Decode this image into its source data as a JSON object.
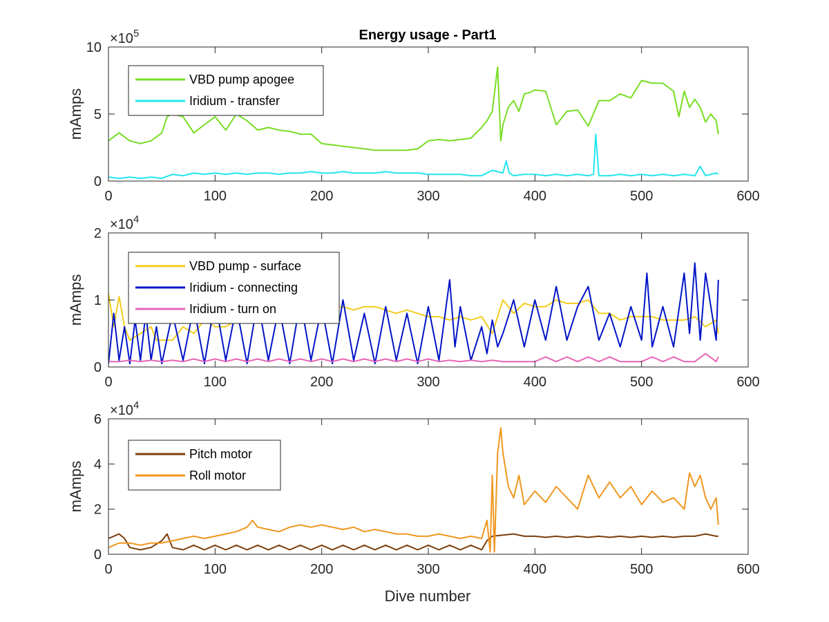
{
  "figure": {
    "title": "Energy usage - Part1",
    "xlabel": "Dive number"
  },
  "chart_data": [
    {
      "type": "line",
      "title": "Energy usage - Part1",
      "xlabel": "",
      "ylabel": "mAmps",
      "ymultiplier": "×10",
      "yexponent": "5",
      "xlim": [
        0,
        600
      ],
      "ylim": [
        0,
        10
      ],
      "xticks": [
        "0",
        "100",
        "200",
        "300",
        "400",
        "500",
        "600"
      ],
      "yticks": [
        "0",
        "5",
        "10"
      ],
      "legend_position": "top-left",
      "series": [
        {
          "name": "VBD pump apogee",
          "color": "#77dd22",
          "x": [
            0,
            10,
            20,
            30,
            40,
            50,
            55,
            60,
            70,
            80,
            90,
            100,
            110,
            120,
            130,
            140,
            150,
            160,
            170,
            180,
            190,
            200,
            210,
            220,
            230,
            240,
            250,
            260,
            270,
            280,
            290,
            300,
            310,
            320,
            330,
            340,
            350,
            355,
            360,
            365,
            368,
            370,
            375,
            380,
            385,
            390,
            395,
            400,
            410,
            420,
            430,
            440,
            450,
            460,
            470,
            480,
            490,
            500,
            510,
            520,
            530,
            535,
            540,
            545,
            550,
            555,
            560,
            565,
            570,
            572
          ],
          "y": [
            3.0,
            3.6,
            3.0,
            2.8,
            3.0,
            3.6,
            4.8,
            5.0,
            4.8,
            3.6,
            4.2,
            4.8,
            3.8,
            5.0,
            4.5,
            3.8,
            4.0,
            3.8,
            3.7,
            3.5,
            3.5,
            2.8,
            2.7,
            2.6,
            2.5,
            2.4,
            2.3,
            2.3,
            2.3,
            2.3,
            2.4,
            3.0,
            3.1,
            3.0,
            3.1,
            3.2,
            4.0,
            4.5,
            5.2,
            8.5,
            3.0,
            4.2,
            5.5,
            6.0,
            5.2,
            6.5,
            6.6,
            6.8,
            6.7,
            4.2,
            5.2,
            5.3,
            4.1,
            6.0,
            6.0,
            6.5,
            6.2,
            7.5,
            7.3,
            7.3,
            6.7,
            4.8,
            6.7,
            5.5,
            6.1,
            5.5,
            4.4,
            5.0,
            4.5,
            3.5
          ]
        },
        {
          "name": "Iridium - transfer",
          "color": "#22e5ef",
          "x": [
            0,
            10,
            20,
            30,
            40,
            50,
            60,
            70,
            80,
            90,
            100,
            110,
            120,
            130,
            140,
            150,
            160,
            170,
            180,
            190,
            200,
            210,
            220,
            230,
            240,
            250,
            260,
            270,
            280,
            290,
            300,
            310,
            320,
            330,
            340,
            350,
            360,
            370,
            373,
            376,
            380,
            390,
            400,
            410,
            420,
            430,
            440,
            450,
            455,
            457,
            460,
            470,
            480,
            490,
            500,
            510,
            520,
            530,
            540,
            550,
            555,
            560,
            570,
            572
          ],
          "y": [
            0.3,
            0.2,
            0.3,
            0.2,
            0.3,
            0.2,
            0.5,
            0.4,
            0.6,
            0.5,
            0.6,
            0.5,
            0.6,
            0.5,
            0.6,
            0.6,
            0.5,
            0.6,
            0.6,
            0.7,
            0.6,
            0.6,
            0.7,
            0.6,
            0.6,
            0.6,
            0.7,
            0.6,
            0.6,
            0.6,
            0.5,
            0.5,
            0.5,
            0.5,
            0.4,
            0.4,
            0.8,
            0.6,
            1.5,
            0.6,
            0.4,
            0.5,
            0.5,
            0.4,
            0.5,
            0.4,
            0.5,
            0.4,
            0.5,
            3.5,
            0.4,
            0.4,
            0.5,
            0.4,
            0.5,
            0.4,
            0.5,
            0.4,
            0.5,
            0.4,
            1.1,
            0.4,
            0.6,
            0.5
          ]
        }
      ]
    },
    {
      "type": "line",
      "title": "",
      "xlabel": "",
      "ylabel": "mAmps",
      "ymultiplier": "×10",
      "yexponent": "4",
      "xlim": [
        0,
        600
      ],
      "ylim": [
        0,
        2
      ],
      "xticks": [
        "0",
        "100",
        "200",
        "300",
        "400",
        "500",
        "600"
      ],
      "yticks": [
        "0",
        "1",
        "2"
      ],
      "legend_position": "top-left",
      "series": [
        {
          "name": "VBD pump - surface",
          "color": "#f2cc1d",
          "x": [
            0,
            5,
            10,
            15,
            20,
            30,
            40,
            45,
            50,
            60,
            70,
            80,
            90,
            100,
            110,
            120,
            130,
            140,
            150,
            160,
            170,
            180,
            190,
            200,
            210,
            220,
            230,
            240,
            250,
            260,
            270,
            280,
            290,
            300,
            310,
            320,
            330,
            340,
            350,
            360,
            370,
            380,
            390,
            400,
            410,
            420,
            430,
            440,
            450,
            460,
            470,
            480,
            490,
            500,
            510,
            520,
            530,
            540,
            550,
            560,
            570,
            572
          ],
          "y": [
            1.1,
            0.6,
            1.05,
            0.6,
            0.4,
            0.5,
            0.6,
            0.4,
            0.4,
            0.4,
            0.6,
            0.5,
            0.7,
            0.6,
            0.6,
            0.7,
            0.75,
            0.8,
            0.75,
            0.85,
            0.8,
            0.9,
            0.85,
            0.9,
            0.9,
            0.9,
            0.85,
            0.9,
            0.9,
            0.85,
            0.8,
            0.85,
            0.8,
            0.75,
            0.75,
            0.7,
            0.75,
            0.7,
            0.75,
            0.5,
            1.0,
            0.8,
            0.95,
            0.9,
            0.9,
            1.0,
            0.95,
            0.95,
            1.0,
            0.8,
            0.8,
            0.7,
            0.75,
            0.75,
            0.75,
            0.7,
            0.7,
            0.7,
            0.75,
            0.6,
            0.7,
            0.5
          ]
        },
        {
          "name": "Iridium - connecting",
          "color": "#0014c8",
          "x": [
            0,
            5,
            10,
            15,
            20,
            25,
            30,
            35,
            40,
            45,
            50,
            60,
            70,
            80,
            90,
            100,
            110,
            120,
            130,
            140,
            150,
            160,
            170,
            180,
            190,
            200,
            210,
            220,
            230,
            240,
            250,
            260,
            270,
            280,
            290,
            300,
            310,
            320,
            325,
            330,
            340,
            350,
            355,
            360,
            365,
            370,
            380,
            390,
            400,
            410,
            420,
            430,
            440,
            450,
            460,
            470,
            480,
            490,
            500,
            505,
            510,
            520,
            530,
            540,
            545,
            550,
            555,
            560,
            570,
            572
          ],
          "y": [
            0.05,
            0.8,
            0.1,
            0.6,
            0.05,
            0.7,
            0.1,
            0.8,
            0.1,
            0.6,
            0.05,
            0.8,
            0.1,
            0.9,
            0.05,
            1.0,
            0.1,
            0.9,
            0.05,
            1.0,
            0.1,
            0.9,
            0.05,
            1.0,
            0.1,
            0.9,
            0.05,
            1.0,
            0.1,
            0.8,
            0.05,
            0.9,
            0.1,
            0.8,
            0.05,
            0.9,
            0.1,
            1.3,
            0.3,
            0.9,
            0.1,
            0.6,
            0.2,
            0.7,
            0.3,
            0.5,
            1.0,
            0.3,
            1.0,
            0.4,
            1.2,
            0.4,
            0.9,
            1.2,
            0.4,
            0.8,
            0.3,
            0.9,
            0.4,
            1.4,
            0.3,
            0.9,
            0.3,
            1.4,
            0.5,
            1.55,
            0.4,
            1.4,
            0.4,
            1.3
          ]
        },
        {
          "name": "Iridium - turn on",
          "color": "#e665b5",
          "x": [
            0,
            10,
            20,
            30,
            40,
            50,
            60,
            70,
            80,
            90,
            100,
            110,
            120,
            130,
            140,
            150,
            160,
            170,
            180,
            190,
            200,
            210,
            220,
            230,
            240,
            250,
            260,
            270,
            280,
            290,
            300,
            310,
            320,
            330,
            340,
            350,
            360,
            370,
            380,
            390,
            400,
            410,
            420,
            430,
            440,
            450,
            460,
            470,
            480,
            490,
            500,
            510,
            520,
            530,
            540,
            550,
            560,
            570,
            572
          ],
          "y": [
            0.08,
            0.08,
            0.1,
            0.08,
            0.1,
            0.08,
            0.1,
            0.08,
            0.12,
            0.08,
            0.12,
            0.08,
            0.12,
            0.08,
            0.12,
            0.08,
            0.12,
            0.08,
            0.12,
            0.08,
            0.12,
            0.08,
            0.12,
            0.08,
            0.12,
            0.08,
            0.12,
            0.08,
            0.12,
            0.08,
            0.12,
            0.08,
            0.1,
            0.08,
            0.1,
            0.08,
            0.1,
            0.08,
            0.08,
            0.08,
            0.08,
            0.15,
            0.08,
            0.15,
            0.08,
            0.15,
            0.08,
            0.15,
            0.08,
            0.08,
            0.08,
            0.15,
            0.08,
            0.15,
            0.08,
            0.08,
            0.2,
            0.08,
            0.15
          ]
        }
      ]
    },
    {
      "type": "line",
      "title": "",
      "xlabel": "Dive number",
      "ylabel": "mAmps",
      "ymultiplier": "×10",
      "yexponent": "4",
      "xlim": [
        0,
        600
      ],
      "ylim": [
        0,
        6
      ],
      "xticks": [
        "0",
        "100",
        "200",
        "300",
        "400",
        "500",
        "600"
      ],
      "yticks": [
        "0",
        "2",
        "4",
        "6"
      ],
      "legend_position": "top-left",
      "series": [
        {
          "name": "Pitch motor",
          "color": "#7a3d0a",
          "x": [
            0,
            5,
            10,
            15,
            20,
            30,
            40,
            50,
            55,
            60,
            70,
            80,
            90,
            100,
            110,
            120,
            130,
            140,
            150,
            160,
            170,
            180,
            190,
            200,
            210,
            220,
            230,
            240,
            250,
            260,
            270,
            280,
            290,
            300,
            310,
            320,
            330,
            340,
            350,
            355,
            360,
            370,
            380,
            390,
            400,
            410,
            420,
            430,
            440,
            450,
            460,
            470,
            480,
            490,
            500,
            510,
            520,
            530,
            540,
            550,
            560,
            570,
            572
          ],
          "y": [
            0.7,
            0.8,
            0.9,
            0.7,
            0.3,
            0.2,
            0.3,
            0.6,
            0.9,
            0.3,
            0.2,
            0.4,
            0.2,
            0.4,
            0.2,
            0.4,
            0.2,
            0.4,
            0.2,
            0.4,
            0.2,
            0.4,
            0.2,
            0.4,
            0.2,
            0.4,
            0.2,
            0.4,
            0.2,
            0.4,
            0.2,
            0.4,
            0.2,
            0.4,
            0.2,
            0.4,
            0.2,
            0.4,
            0.2,
            0.6,
            0.8,
            0.85,
            0.9,
            0.8,
            0.8,
            0.75,
            0.8,
            0.75,
            0.8,
            0.75,
            0.8,
            0.75,
            0.8,
            0.75,
            0.8,
            0.75,
            0.8,
            0.75,
            0.8,
            0.8,
            0.9,
            0.8,
            0.8
          ]
        },
        {
          "name": "Roll motor",
          "color": "#f0961e",
          "x": [
            0,
            10,
            20,
            30,
            40,
            50,
            60,
            70,
            80,
            90,
            100,
            110,
            120,
            130,
            135,
            140,
            150,
            160,
            170,
            180,
            190,
            200,
            210,
            220,
            230,
            240,
            250,
            260,
            270,
            280,
            290,
            300,
            310,
            320,
            330,
            340,
            350,
            355,
            358,
            360,
            362,
            365,
            368,
            370,
            375,
            380,
            385,
            390,
            400,
            410,
            420,
            430,
            440,
            450,
            460,
            470,
            480,
            490,
            500,
            510,
            520,
            530,
            540,
            545,
            550,
            555,
            560,
            565,
            570,
            572
          ],
          "y": [
            0.3,
            0.5,
            0.5,
            0.4,
            0.5,
            0.5,
            0.6,
            0.7,
            0.8,
            0.7,
            0.8,
            0.9,
            1.0,
            1.2,
            1.5,
            1.2,
            1.1,
            1.0,
            1.2,
            1.3,
            1.2,
            1.3,
            1.2,
            1.1,
            1.2,
            1.0,
            1.1,
            1.0,
            0.9,
            0.9,
            0.8,
            0.8,
            0.9,
            0.8,
            0.7,
            0.8,
            0.7,
            1.5,
            0.1,
            3.5,
            0.1,
            4.5,
            5.6,
            4.5,
            3.0,
            2.5,
            3.5,
            2.2,
            2.8,
            2.3,
            3.0,
            2.5,
            2.0,
            3.5,
            2.5,
            3.2,
            2.5,
            3.0,
            2.2,
            2.8,
            2.3,
            2.5,
            2.0,
            3.6,
            3.0,
            3.5,
            2.5,
            2.0,
            2.5,
            1.3
          ]
        }
      ]
    }
  ]
}
